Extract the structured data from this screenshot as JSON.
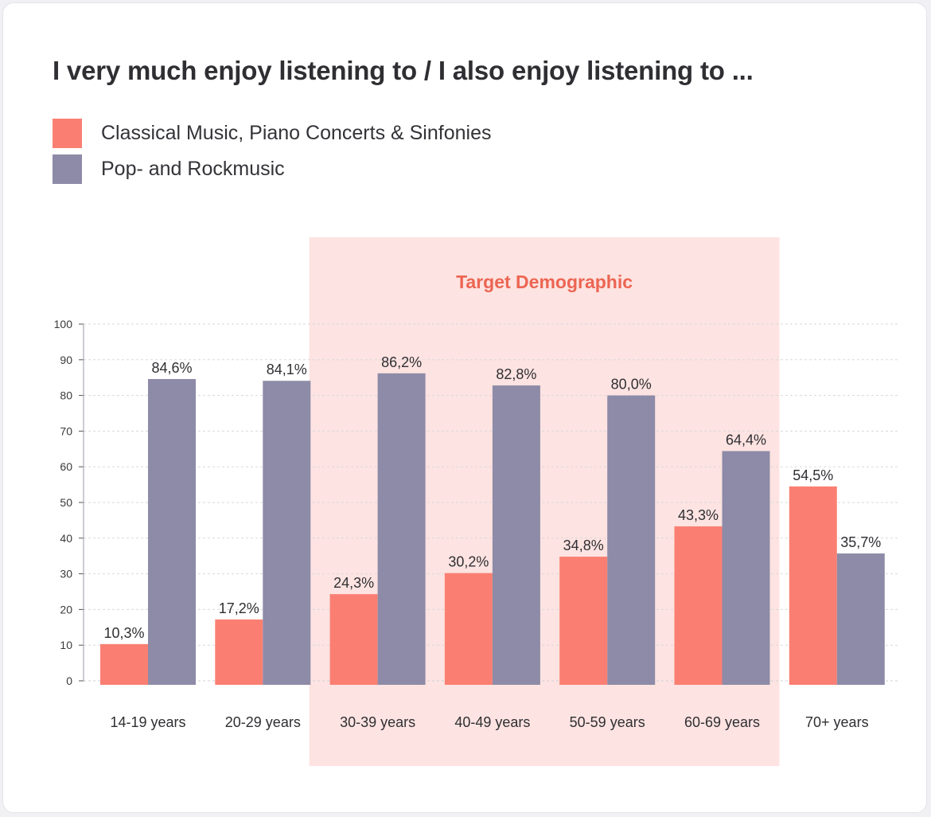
{
  "chart_data": {
    "type": "bar",
    "title": "I very much enjoy listening to / I also enjoy listening to ...",
    "categories": [
      "14-19 years",
      "20-29 years",
      "30-39 years",
      "40-49 years",
      "50-59 years",
      "60-69 years",
      "70+ years"
    ],
    "series": [
      {
        "name": "Classical Music, Piano Concerts & Sinfonies",
        "color": "#fa7f72",
        "values": [
          10.3,
          17.2,
          24.3,
          30.2,
          34.8,
          43.3,
          54.5
        ],
        "labels": [
          "10,3%",
          "17,2%",
          "24,3%",
          "30,2%",
          "34,8%",
          "43,3%",
          "54,5%"
        ]
      },
      {
        "name": "Pop- and Rockmusic",
        "color": "#8d8ba7",
        "values": [
          84.6,
          84.1,
          86.2,
          82.8,
          80.0,
          64.4,
          35.7
        ],
        "labels": [
          "84,6%",
          "84,1%",
          "86,2%",
          "82,8%",
          "80,0%",
          "64,4%",
          "35,7%"
        ]
      }
    ],
    "ylim": [
      0,
      100
    ],
    "yticks": [
      "0",
      "10",
      "20",
      "30",
      "40",
      "50",
      "60",
      "70",
      "80",
      "90",
      "100"
    ],
    "grid": true,
    "legend": "top-left",
    "highlight": {
      "label": "Target Demographic",
      "from_category": "30-39 years",
      "to_category": "60-69 years",
      "color": "#fde3e1"
    },
    "xlabel": "",
    "ylabel": ""
  }
}
